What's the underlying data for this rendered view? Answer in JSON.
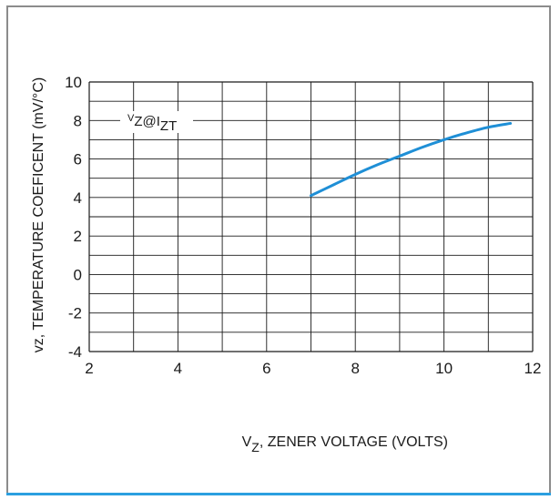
{
  "chart_data": {
    "type": "line",
    "ylabel": "vz, TEMPERATURE COEFICENT (mV/°C)",
    "xlabel": {
      "main": "V",
      "sub": "Z",
      "rest": ", ZENER VOLTAGE (VOLTS)"
    },
    "annotation": {
      "a": "V",
      "b": "Z",
      "c": "@I",
      "d": "ZT"
    },
    "xlim": [
      2,
      12
    ],
    "ylim": [
      -4,
      10
    ],
    "x_ticks": [
      2,
      4,
      6,
      8,
      10,
      12
    ],
    "y_ticks": [
      10,
      8,
      6,
      4,
      2,
      0,
      -2,
      -4
    ],
    "grid": true,
    "series": [
      {
        "color": "#1f8fd6",
        "x": [
          7.0,
          7.5,
          8.0,
          8.5,
          9.0,
          9.5,
          10.0,
          10.5,
          11.0,
          11.5
        ],
        "y": [
          4.1,
          4.65,
          5.2,
          5.7,
          6.15,
          6.6,
          7.0,
          7.35,
          7.65,
          7.85
        ]
      }
    ],
    "colors": {
      "grid": "#1a1a1a",
      "frame": "#8c8c8c",
      "accent": "#2b9fe0"
    }
  }
}
